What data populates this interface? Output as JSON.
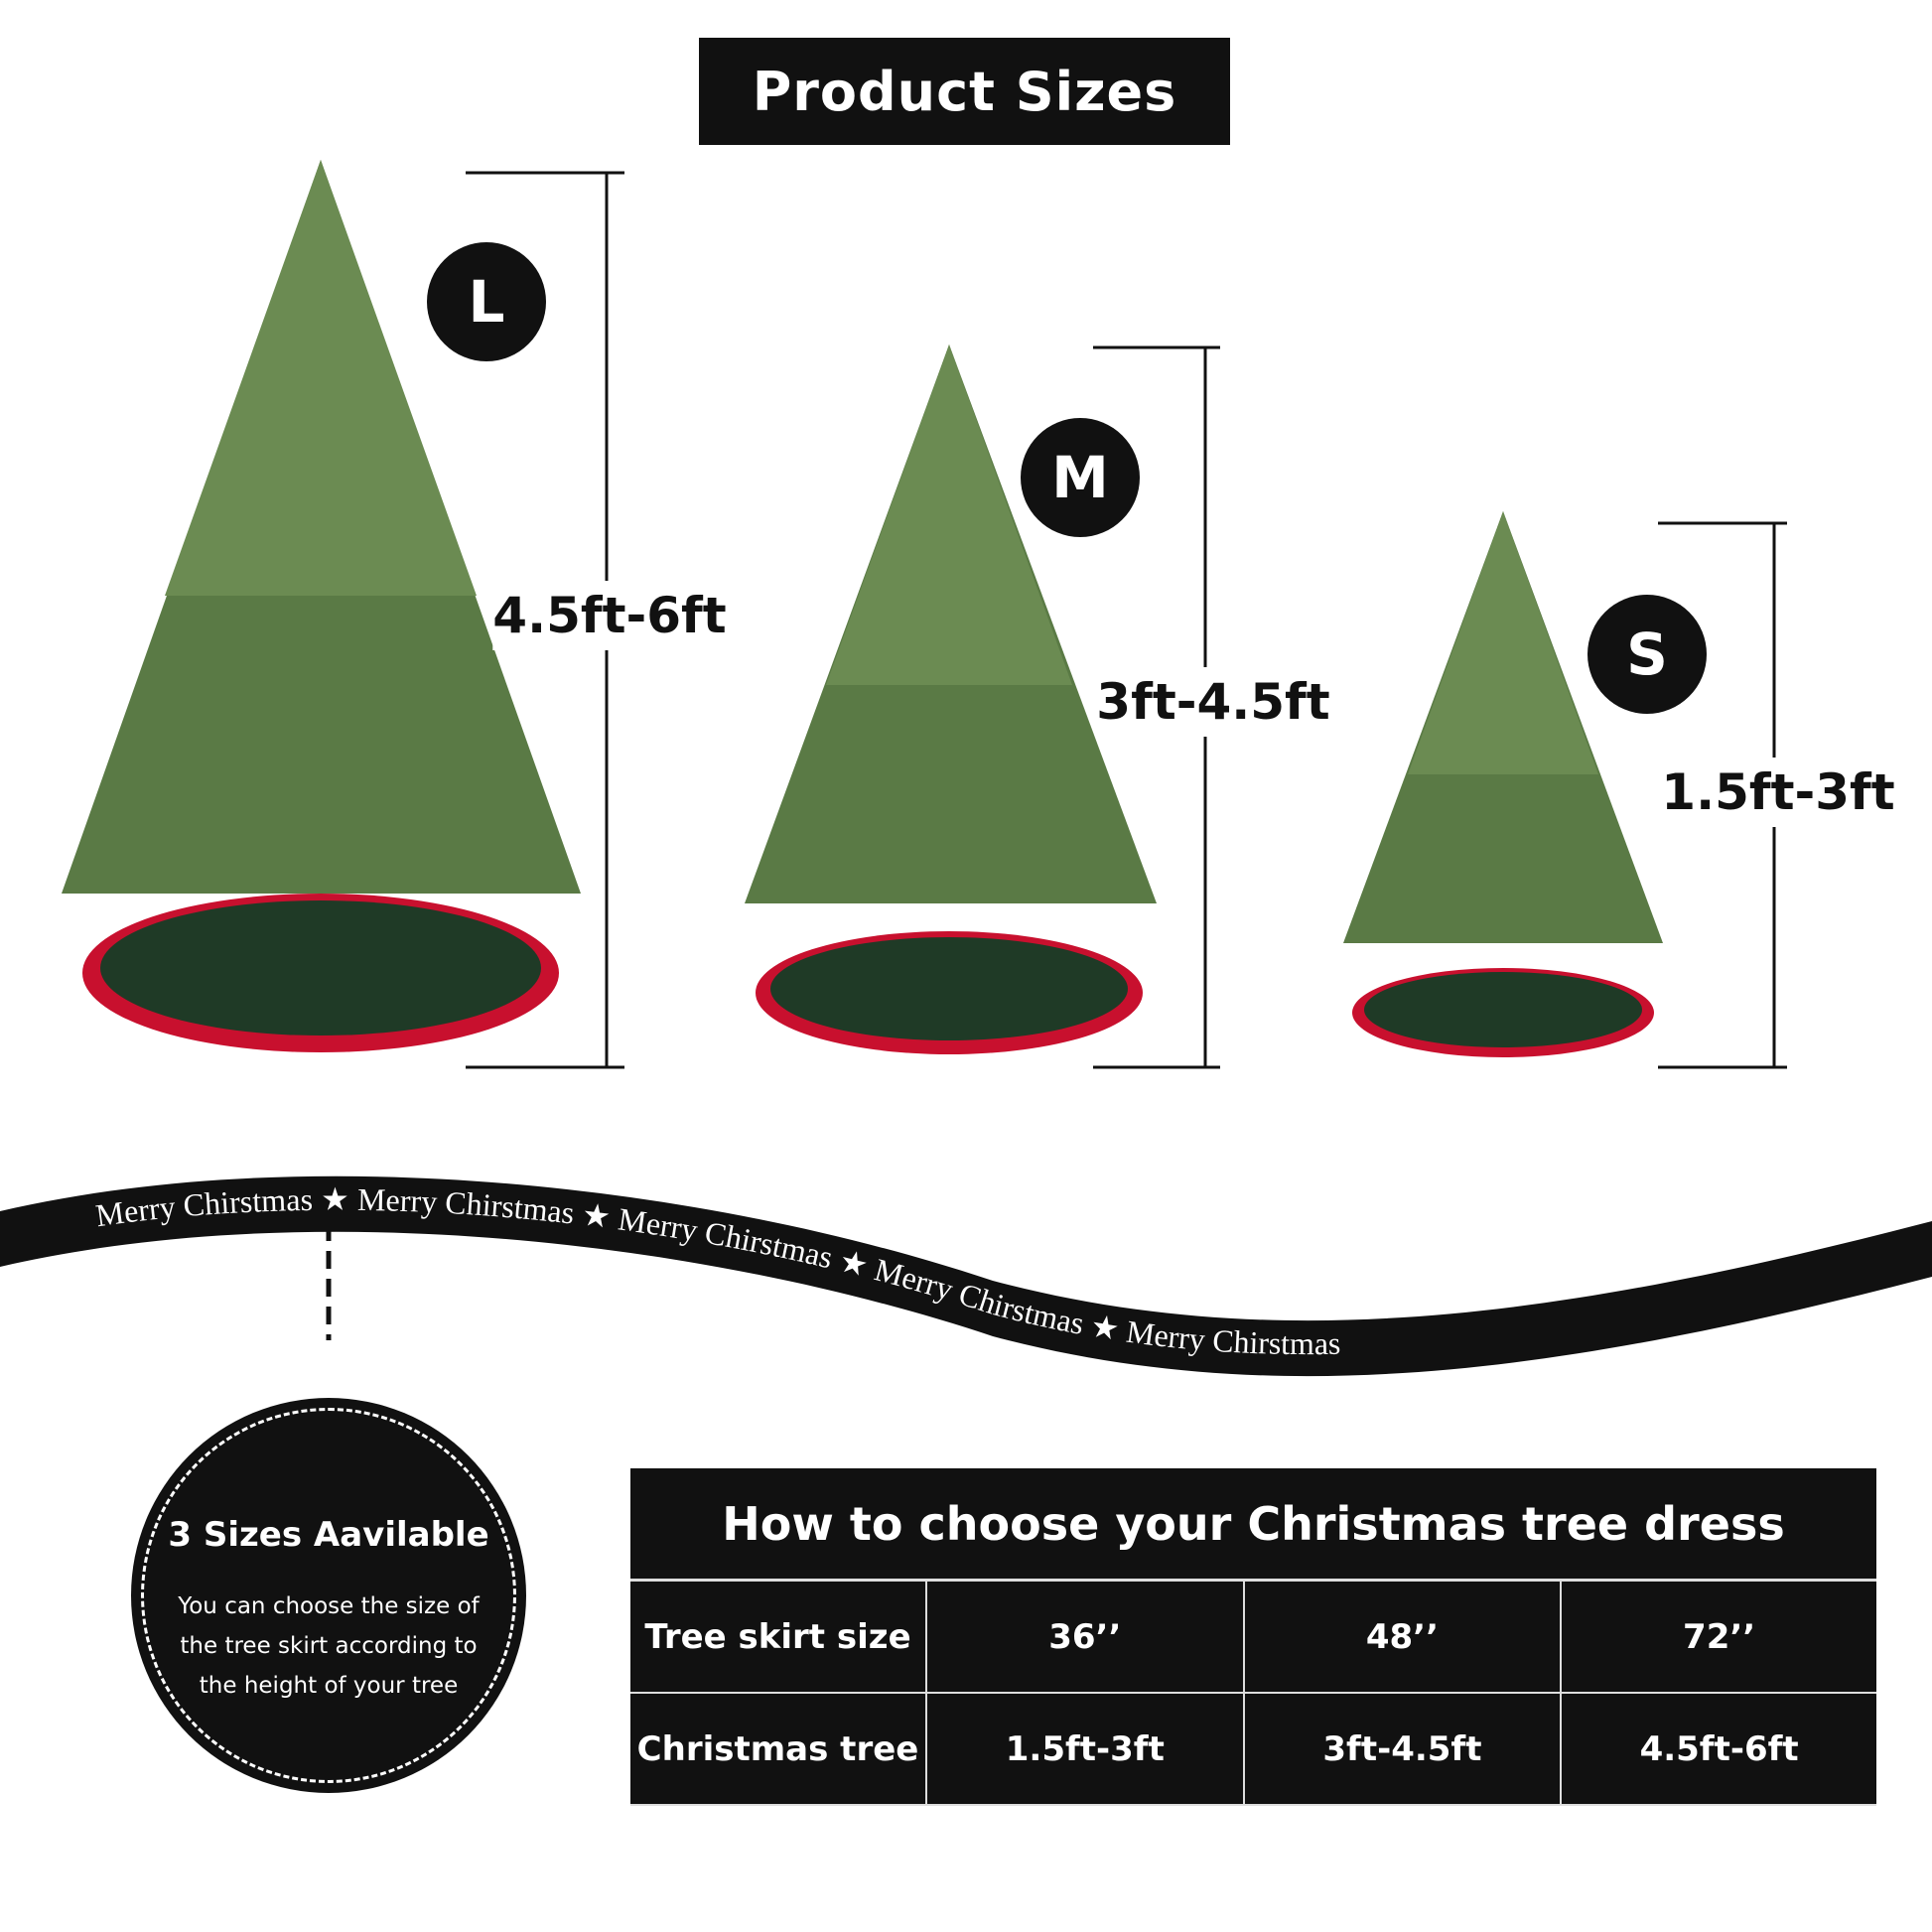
{
  "title": "Product Sizes",
  "sizes": [
    {
      "badge": "L",
      "height": "4.5ft-6ft"
    },
    {
      "badge": "M",
      "height": "3ft-4.5ft"
    },
    {
      "badge": "S",
      "height": "1.5ft-3ft"
    }
  ],
  "ribbon": {
    "text": "Merry Chirstmas"
  },
  "info_badge": {
    "heading": "3 Sizes Aavilable",
    "text": "You can choose the size of the tree skirt according to the height of your tree"
  },
  "table": {
    "title": "How to choose your Christmas tree dress",
    "rows": [
      {
        "label": "Tree skirt size",
        "values": [
          "36’’",
          "48’’",
          "72’’"
        ]
      },
      {
        "label": "Christmas tree",
        "values": [
          "1.5ft-3ft",
          "3ft-4.5ft",
          "4.5ft-6ft"
        ]
      }
    ]
  },
  "colors": {
    "tree": "#5a7a45",
    "skirt": "#1f3a26",
    "skirt_trim": "#c8102e",
    "dark": "#111111"
  }
}
